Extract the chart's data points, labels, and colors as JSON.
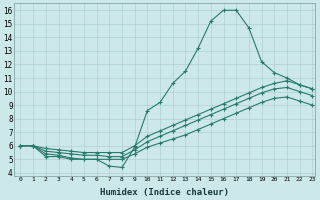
{
  "bg_color": "#cce8e8",
  "grid_color": "#b0d0d0",
  "line_color": "#2a7a6a",
  "xlabel": "Humidex (Indice chaleur)",
  "xlim": [
    -0.5,
    23.2
  ],
  "ylim": [
    3.8,
    16.5
  ],
  "xticks": [
    0,
    1,
    2,
    3,
    4,
    5,
    6,
    7,
    8,
    9,
    10,
    11,
    12,
    13,
    14,
    15,
    16,
    17,
    18,
    19,
    20,
    21,
    22,
    23
  ],
  "yticks": [
    4,
    5,
    6,
    7,
    8,
    9,
    10,
    11,
    12,
    13,
    14,
    15,
    16
  ],
  "line1_x": [
    0,
    1,
    2,
    3,
    4,
    5,
    6,
    7,
    8,
    9,
    10,
    11,
    12,
    13,
    14,
    15,
    16,
    17,
    18,
    19,
    20,
    21,
    22,
    23
  ],
  "line1_y": [
    6.0,
    6.0,
    5.2,
    5.2,
    5.0,
    5.0,
    5.0,
    4.5,
    4.4,
    5.9,
    8.6,
    9.2,
    10.6,
    11.5,
    13.2,
    15.2,
    16.0,
    16.0,
    14.7,
    12.2,
    11.4,
    11.0,
    10.5,
    10.2
  ],
  "line2_x": [
    0,
    1,
    2,
    3,
    4,
    5,
    6,
    7,
    8,
    9,
    10,
    11,
    12,
    13,
    14,
    15,
    16,
    17,
    18,
    19,
    20,
    21,
    22,
    23
  ],
  "line2_y": [
    6.0,
    6.0,
    5.8,
    5.7,
    5.6,
    5.5,
    5.5,
    5.5,
    5.5,
    6.0,
    6.7,
    7.1,
    7.5,
    7.9,
    8.3,
    8.7,
    9.1,
    9.5,
    9.9,
    10.3,
    10.6,
    10.8,
    10.5,
    10.2
  ],
  "line3_x": [
    0,
    1,
    2,
    3,
    4,
    5,
    6,
    7,
    8,
    9,
    10,
    11,
    12,
    13,
    14,
    15,
    16,
    17,
    18,
    19,
    20,
    21,
    22,
    23
  ],
  "line3_y": [
    6.0,
    6.0,
    5.6,
    5.5,
    5.4,
    5.3,
    5.3,
    5.2,
    5.2,
    5.7,
    6.3,
    6.7,
    7.1,
    7.5,
    7.9,
    8.3,
    8.7,
    9.1,
    9.5,
    9.9,
    10.2,
    10.3,
    10.0,
    9.7
  ],
  "line4_x": [
    0,
    1,
    2,
    3,
    4,
    5,
    6,
    7,
    8,
    9,
    10,
    11,
    12,
    13,
    14,
    15,
    16,
    17,
    18,
    19,
    20,
    21,
    22,
    23
  ],
  "line4_y": [
    6.0,
    6.0,
    5.4,
    5.3,
    5.1,
    5.0,
    5.0,
    5.0,
    5.0,
    5.4,
    5.9,
    6.2,
    6.5,
    6.8,
    7.2,
    7.6,
    8.0,
    8.4,
    8.8,
    9.2,
    9.5,
    9.6,
    9.3,
    9.0
  ]
}
